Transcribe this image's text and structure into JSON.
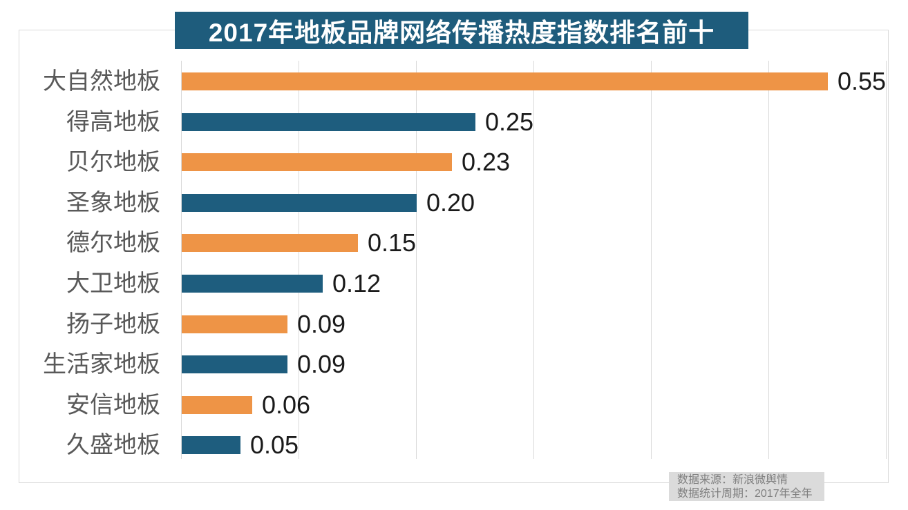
{
  "title": "2017年地板品牌网络传播热度指数排名前十",
  "chart_data": {
    "type": "bar",
    "orientation": "horizontal",
    "title": "2017年地板品牌网络传播热度指数排名前十",
    "categories": [
      "大自然地板",
      "得高地板",
      "贝尔地板",
      "圣象地板",
      "德尔地板",
      "大卫地板",
      "扬子地板",
      "生活家地板",
      "安信地板",
      "久盛地板"
    ],
    "values": [
      0.55,
      0.25,
      0.23,
      0.2,
      0.15,
      0.12,
      0.09,
      0.09,
      0.06,
      0.05
    ],
    "value_labels": [
      "0.55",
      "0.25",
      "0.23",
      "0.20",
      "0.15",
      "0.12",
      "0.09",
      "0.09",
      "0.06",
      "0.05"
    ],
    "xlabel": "",
    "ylabel": "",
    "xlim": [
      0,
      0.62
    ],
    "gridline_values": [
      0,
      0.1,
      0.2,
      0.3,
      0.4,
      0.5,
      0.6
    ],
    "grid": true,
    "legend": "none",
    "bar_color_alternating": [
      "#ee9446",
      "#1e5d7e"
    ]
  },
  "colors": {
    "orange_bar": "#ee9446",
    "teal_bar": "#1e5d7e",
    "title_banner_bg": "#1e5c7c",
    "title_text": "#ffffff",
    "gridline": "#d9d9d9",
    "category_label": "#595959",
    "value_label": "#1a1a1a",
    "footer_bg": "#dbdbdb",
    "footer_text": "#7f7f7f"
  },
  "footer": {
    "source_line": "数据来源：新浪微舆情",
    "period_line": "数据统计周期：2017年全年"
  }
}
